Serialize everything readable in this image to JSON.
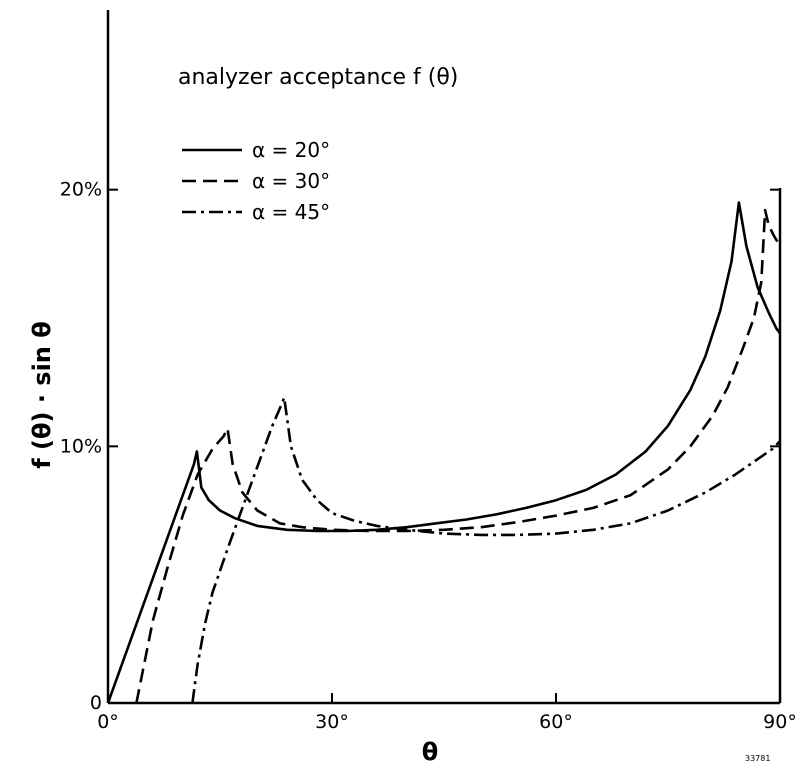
{
  "chart_data": {
    "type": "line",
    "title": "analyzer acceptance  f (θ)",
    "xlabel": "θ",
    "ylabel": "f (θ) · sin θ",
    "xlim": [
      0,
      90
    ],
    "ylim": [
      0,
      27
    ],
    "x_ticks": [
      {
        "value": 0,
        "label": "0°"
      },
      {
        "value": 30,
        "label": "30°"
      },
      {
        "value": 60,
        "label": "60°"
      },
      {
        "value": 90,
        "label": "90°"
      }
    ],
    "y_ticks": [
      {
        "value": 0,
        "label": "0"
      },
      {
        "value": 10,
        "label": "10%"
      },
      {
        "value": 20,
        "label": "20%"
      }
    ],
    "grid": false,
    "legend_position": "top-left",
    "figure_number": "33781",
    "series": [
      {
        "name": "α = 20°",
        "style": "solid",
        "x": [
          0,
          11.5,
          11.9,
          12.5,
          13.5,
          15,
          17,
          20,
          24,
          28,
          32,
          36,
          40,
          44,
          48,
          52,
          56,
          60,
          64,
          68,
          72,
          75,
          78,
          80,
          82,
          83.5,
          84.5,
          85.5,
          87,
          88.5,
          89.5,
          90
        ],
        "y": [
          0,
          9.3,
          9.8,
          8.4,
          7.9,
          7.5,
          7.2,
          6.9,
          6.75,
          6.7,
          6.7,
          6.75,
          6.85,
          7.0,
          7.15,
          7.35,
          7.6,
          7.9,
          8.3,
          8.9,
          9.8,
          10.8,
          12.2,
          13.5,
          15.3,
          17.2,
          19.5,
          17.8,
          16.2,
          15.2,
          14.6,
          14.4
        ]
      },
      {
        "name": "α = 30°",
        "style": "dashed",
        "x": [
          3.8,
          6,
          8,
          10,
          12,
          14,
          15.5,
          16,
          16.7,
          18,
          20,
          23,
          26,
          30,
          35,
          40,
          45,
          50,
          55,
          60,
          65,
          70,
          75,
          78,
          81,
          83,
          85,
          86.5,
          87.5,
          88,
          88.5,
          89.2,
          90
        ],
        "y": [
          0,
          3.2,
          5.3,
          7.3,
          8.9,
          9.9,
          10.4,
          10.7,
          9.3,
          8.2,
          7.5,
          7.0,
          6.85,
          6.75,
          6.7,
          6.7,
          6.75,
          6.85,
          7.05,
          7.3,
          7.6,
          8.1,
          9.1,
          10.0,
          11.2,
          12.3,
          13.8,
          15.0,
          16.4,
          19.2,
          18.6,
          18.2,
          17.8
        ]
      },
      {
        "name": "α = 45°",
        "style": "dashdot",
        "x": [
          11.3,
          12,
          13,
          14,
          16,
          18,
          20,
          22,
          23.2,
          23.6,
          24.5,
          26,
          28,
          30,
          33,
          36,
          40,
          45,
          50,
          55,
          60,
          65,
          70,
          75,
          80,
          84,
          87,
          89,
          90
        ],
        "y": [
          0,
          1.5,
          3.1,
          4.3,
          6.0,
          7.6,
          9.2,
          10.8,
          11.6,
          11.9,
          10.0,
          8.7,
          7.9,
          7.4,
          7.1,
          6.9,
          6.75,
          6.6,
          6.55,
          6.55,
          6.6,
          6.75,
          7.0,
          7.5,
          8.2,
          8.9,
          9.5,
          9.9,
          10.2
        ]
      }
    ]
  }
}
